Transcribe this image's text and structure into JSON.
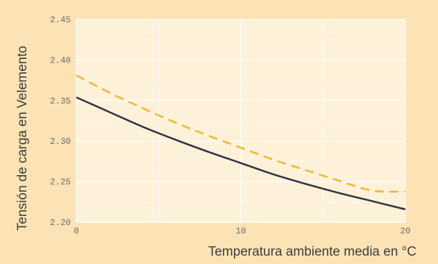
{
  "chart_data": {
    "type": "line",
    "title": "",
    "xlabel": "Temperatura ambiente media en °C",
    "ylabel": "Tensión de carga en Velemento",
    "xlim": [
      0,
      20
    ],
    "ylim": [
      2.2,
      2.45
    ],
    "x_ticks": [
      0,
      10,
      20
    ],
    "x_tick_labels": [
      "0",
      "10",
      "20"
    ],
    "y_ticks": [
      2.2,
      2.25,
      2.3,
      2.35,
      2.4,
      2.45
    ],
    "y_tick_labels": [
      "2.20",
      "2.25",
      "2.30",
      "2.35",
      "2.40",
      "2.45"
    ],
    "grid": true,
    "legend": "none",
    "x": [
      0,
      2,
      4,
      6,
      8,
      10,
      12,
      14,
      16,
      18,
      20
    ],
    "series": [
      {
        "values": [
          2.354,
          2.336,
          2.318,
          2.302,
          2.287,
          2.273,
          2.259,
          2.247,
          2.236,
          2.226,
          2.216
        ],
        "color": "#333340",
        "dash": "solid"
      },
      {
        "values": [
          2.381,
          2.36,
          2.341,
          2.323,
          2.307,
          2.292,
          2.277,
          2.264,
          2.251,
          2.239,
          2.238
        ],
        "color": "#f0b732",
        "dash": "dashed"
      }
    ]
  },
  "colors": {
    "page_background": "#fbe3b5",
    "plot_background": "#fdf1d9",
    "grid": "#ffffff"
  }
}
